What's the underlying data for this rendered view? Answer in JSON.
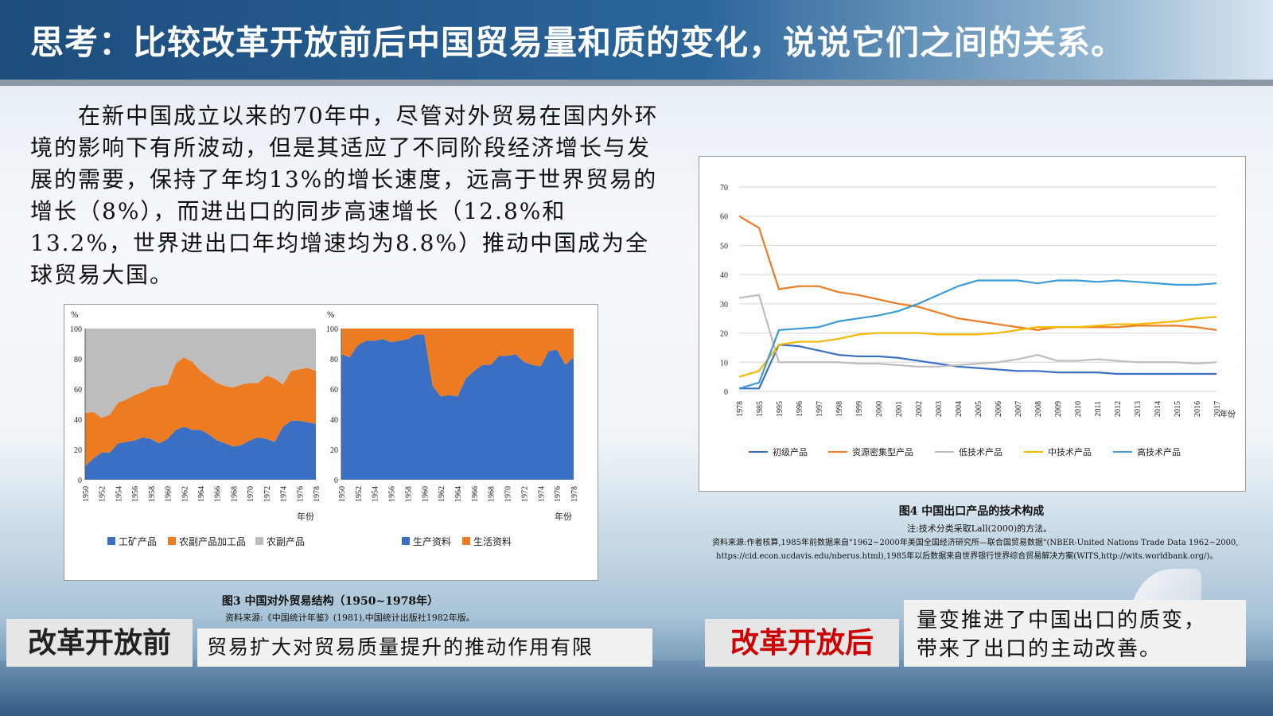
{
  "header": {
    "title": "思考：比较改革开放前后中国贸易量和质的变化，说说它们之间的关系。"
  },
  "body_text": "　　在新中国成立以来的70年中，尽管对外贸易在国内外环境的影响下有所波动，但是其适应了不同阶段经济增长与发展的需要，保持了年均13%的增长速度，远高于世界贸易的增长（8%），而进出口的同步高速增长（12.8%和13.2%，世界进出口年均增速均为8.8%）推动中国成为全球贸易大国。",
  "fig3": {
    "caption": "图3  中国对外贸易结构（1950~1978年）",
    "source": "资料来源:《中国统计年鉴》(1981),中国统计出版社1982年版。"
  },
  "fig4": {
    "caption": "图4  中国出口产品的技术构成",
    "note": "注:技术分类采取Lall(2000)的方法。",
    "source1": "资料来源:作者核算,1985年前数据来自\"1962~2000年美国全国经济研究所—联合国贸易数据\"(NBER-United Nations Trade Data 1962~2000,",
    "source2": "https://cid.econ.ucdavis.edu/nberus.html),1985年以后数据来自世界银行世界综合贸易解决方案(WITS,http://wits.worldbank.org/)。"
  },
  "before": {
    "label": "改革开放前",
    "text": "贸易扩大对贸易质量提升的推动作用有限"
  },
  "after": {
    "label": "改革开放后",
    "line1": "量变推进了中国出口的质变，",
    "line2": "带来了出口的主动改善。"
  },
  "colors": {
    "blue": "#3a6fc4",
    "orange": "#ed7b22",
    "gray": "#bdbdbd",
    "yellow": "#f5b800",
    "lightblue": "#3b9ad8",
    "red": "#cc0000"
  },
  "chart_data": [
    {
      "type": "area",
      "ylabel": "%",
      "xlabel": "年份",
      "ylim": [
        0,
        100
      ],
      "yticks": [
        0,
        20,
        40,
        60,
        80,
        100
      ],
      "x": [
        1950,
        1951,
        1952,
        1953,
        1954,
        1955,
        1956,
        1957,
        1958,
        1959,
        1960,
        1961,
        1962,
        1963,
        1964,
        1965,
        1966,
        1967,
        1968,
        1969,
        1970,
        1971,
        1972,
        1973,
        1974,
        1975,
        1976,
        1977,
        1978
      ],
      "xtick_labels": [
        "1950",
        "1952",
        "1954",
        "1956",
        "1958",
        "1960",
        "1962",
        "1964",
        "1966",
        "1968",
        "1970",
        "1972",
        "1974",
        "1976",
        "1978"
      ],
      "legend": [
        "工矿产品",
        "农副产品加工品",
        "农副产品"
      ],
      "series": [
        {
          "name": "工矿产品",
          "values": [
            9,
            14,
            18,
            18,
            24,
            25,
            26,
            28,
            27,
            24,
            27,
            33,
            35,
            33,
            33,
            30,
            26,
            24,
            22,
            23,
            26,
            28,
            27,
            25,
            35,
            39,
            39,
            38,
            37
          ]
        },
        {
          "name": "农副产品加工品",
          "values": [
            35,
            31,
            23,
            25,
            27,
            28,
            30,
            30,
            34,
            38,
            36,
            44,
            46,
            45,
            39,
            38,
            38,
            38,
            39,
            40,
            38,
            36,
            42,
            42,
            28,
            33,
            34,
            36,
            35
          ]
        },
        {
          "name": "农副产品",
          "values": [
            56,
            55,
            59,
            57,
            49,
            47,
            44,
            42,
            39,
            38,
            37,
            23,
            19,
            22,
            28,
            32,
            36,
            38,
            39,
            37,
            36,
            36,
            31,
            33,
            37,
            28,
            27,
            26,
            28
          ]
        }
      ]
    },
    {
      "type": "area",
      "ylabel": "%",
      "xlabel": "年份",
      "ylim": [
        0,
        100
      ],
      "yticks": [
        0,
        20,
        40,
        60,
        80,
        100
      ],
      "x": [
        1950,
        1951,
        1952,
        1953,
        1954,
        1955,
        1956,
        1957,
        1958,
        1959,
        1960,
        1961,
        1962,
        1963,
        1964,
        1965,
        1966,
        1967,
        1968,
        1969,
        1970,
        1971,
        1972,
        1973,
        1974,
        1975,
        1976,
        1977,
        1978
      ],
      "xtick_labels": [
        "1950",
        "1952",
        "1954",
        "1956",
        "1958",
        "1960",
        "1962",
        "1964",
        "1966",
        "1968",
        "1970",
        "1972",
        "1974",
        "1976",
        "1978"
      ],
      "legend": [
        "生产资料",
        "生活资料"
      ],
      "series": [
        {
          "name": "生产资料",
          "values": [
            83,
            81,
            89,
            92,
            92,
            93,
            91,
            92,
            93,
            96,
            96,
            62,
            55,
            56,
            55,
            67,
            72,
            76,
            76,
            82,
            82,
            83,
            78,
            76,
            75,
            85,
            86,
            76,
            81
          ]
        },
        {
          "name": "生活资料",
          "values": [
            17,
            19,
            11,
            8,
            8,
            7,
            9,
            8,
            7,
            4,
            4,
            38,
            45,
            44,
            45,
            33,
            28,
            24,
            24,
            18,
            18,
            17,
            22,
            24,
            25,
            15,
            14,
            24,
            19
          ]
        }
      ]
    },
    {
      "type": "line",
      "xlabel": "年份",
      "ylim": [
        0,
        70
      ],
      "yticks": [
        0,
        10,
        20,
        30,
        40,
        50,
        60,
        70
      ],
      "categories": [
        "1978",
        "1985",
        "1995",
        "1996",
        "1997",
        "1998",
        "1999",
        "2000",
        "2001",
        "2002",
        "2003",
        "2004",
        "2005",
        "2006",
        "2007",
        "2008",
        "2009",
        "2010",
        "2011",
        "2012",
        "2013",
        "2014",
        "2015",
        "2016",
        "2017"
      ],
      "legend": [
        "初级产品",
        "资源密集型产品",
        "低技术产品",
        "中技术产品",
        "高技术产品"
      ],
      "series": [
        {
          "name": "初级产品",
          "values": [
            1,
            1,
            16,
            15.5,
            14,
            12.5,
            12,
            12,
            11.5,
            10.5,
            9.5,
            8.5,
            8,
            7.5,
            7,
            7,
            6.5,
            6.5,
            6.5,
            6,
            6,
            6,
            6,
            6,
            6
          ]
        },
        {
          "name": "资源密集型产品",
          "values": [
            60,
            56,
            35,
            36,
            36,
            34,
            33,
            31.5,
            30,
            29,
            27,
            25,
            24,
            23,
            22,
            21,
            22,
            22,
            22,
            22,
            22.5,
            22.5,
            22.5,
            22,
            21
          ]
        },
        {
          "name": "低技术产品",
          "values": [
            32,
            33,
            10,
            10,
            10,
            10,
            9.5,
            9.5,
            9,
            8.5,
            8.5,
            9,
            9.5,
            10,
            11,
            12.5,
            10.5,
            10.5,
            11,
            10.5,
            10,
            10,
            10,
            9.5,
            10
          ]
        },
        {
          "name": "中技术产品",
          "values": [
            5,
            7,
            16,
            17,
            17,
            18,
            19.5,
            20,
            20,
            20,
            19.5,
            19.5,
            19.5,
            20,
            21,
            22,
            22,
            22,
            22.5,
            23,
            23,
            23.5,
            24,
            25,
            25.5
          ]
        },
        {
          "name": "高技术产品",
          "values": [
            1,
            3,
            21,
            21.5,
            22,
            24,
            25,
            26,
            27.5,
            30,
            33,
            36,
            38,
            38,
            38,
            37,
            38,
            38,
            37.5,
            38,
            37.5,
            37,
            36.5,
            36.5,
            37
          ]
        }
      ]
    }
  ]
}
